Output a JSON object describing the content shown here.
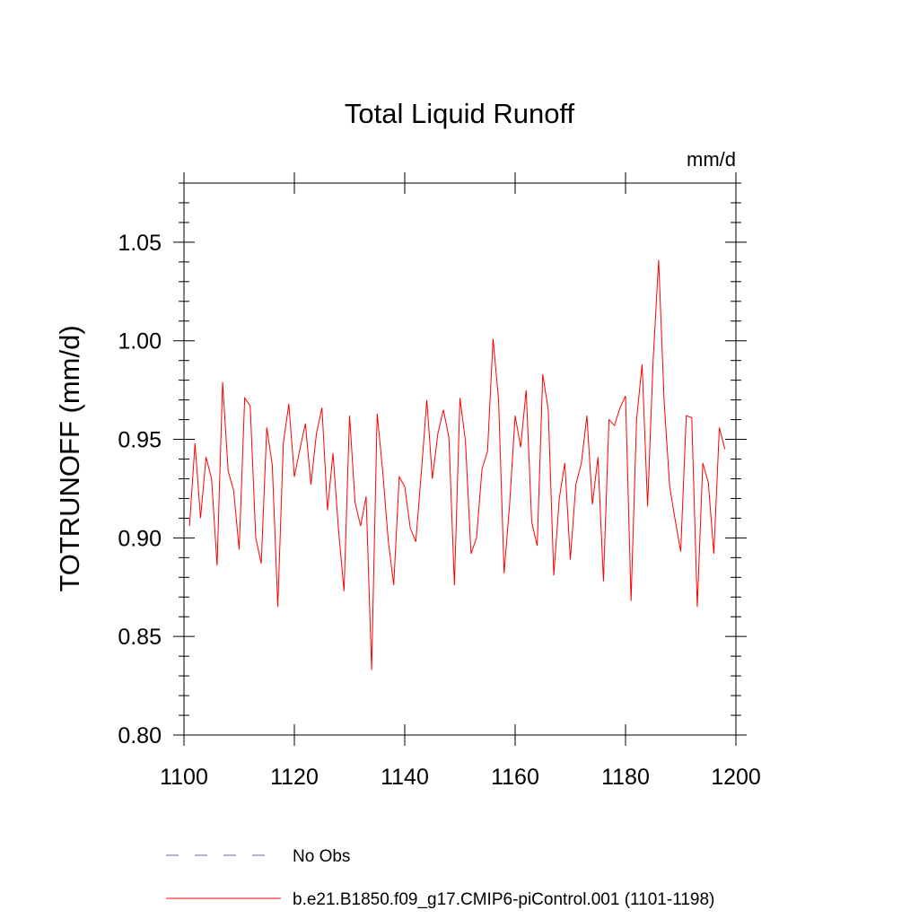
{
  "chart_data": {
    "type": "line",
    "title": "Total Liquid Runoff",
    "units_label": "mm/d",
    "ylabel": "TOTRUNOFF  (mm/d)",
    "xlabel": "",
    "xlim": [
      1100,
      1200
    ],
    "ylim": [
      0.8,
      1.08
    ],
    "xticks": [
      1100,
      1120,
      1140,
      1160,
      1180,
      1200
    ],
    "xtick_labels": [
      "1100",
      "1120",
      "1140",
      "1160",
      "1180",
      "1200"
    ],
    "yticks": [
      0.8,
      0.85,
      0.9,
      0.95,
      1.0,
      1.05
    ],
    "ytick_labels": [
      "0.80",
      "0.85",
      "0.90",
      "0.95",
      "1.00",
      "1.05"
    ],
    "grid": false,
    "legend_position": "bottom",
    "legend": [
      {
        "label": "No Obs",
        "color": "#6a5acd",
        "style": "dashed"
      },
      {
        "label": "b.e21.B1850.f09_g17.CMIP6-piControl.001 (1101-1198)",
        "color": "#ff0000",
        "style": "solid"
      }
    ],
    "series": [
      {
        "name": "b.e21.B1850.f09_g17.CMIP6-piControl.001 (1101-1198)",
        "color": "#ff0000",
        "x": [
          1101,
          1102,
          1103,
          1104,
          1105,
          1106,
          1107,
          1108,
          1109,
          1110,
          1111,
          1112,
          1113,
          1114,
          1115,
          1116,
          1117,
          1118,
          1119,
          1120,
          1121,
          1122,
          1123,
          1124,
          1125,
          1126,
          1127,
          1128,
          1129,
          1130,
          1131,
          1132,
          1133,
          1134,
          1135,
          1136,
          1137,
          1138,
          1139,
          1140,
          1141,
          1142,
          1143,
          1144,
          1145,
          1146,
          1147,
          1148,
          1149,
          1150,
          1151,
          1152,
          1153,
          1154,
          1155,
          1156,
          1157,
          1158,
          1159,
          1160,
          1161,
          1162,
          1163,
          1164,
          1165,
          1166,
          1167,
          1168,
          1169,
          1170,
          1171,
          1172,
          1173,
          1174,
          1175,
          1176,
          1177,
          1178,
          1179,
          1180,
          1181,
          1182,
          1183,
          1184,
          1185,
          1186,
          1187,
          1188,
          1189,
          1190,
          1191,
          1192,
          1193,
          1194,
          1195,
          1196,
          1197,
          1198
        ],
        "values": [
          0.906,
          0.948,
          0.91,
          0.941,
          0.93,
          0.886,
          0.979,
          0.934,
          0.924,
          0.894,
          0.971,
          0.967,
          0.9,
          0.887,
          0.956,
          0.937,
          0.865,
          0.948,
          0.968,
          0.931,
          0.945,
          0.958,
          0.927,
          0.953,
          0.966,
          0.914,
          0.943,
          0.904,
          0.873,
          0.962,
          0.918,
          0.906,
          0.921,
          0.833,
          0.963,
          0.934,
          0.899,
          0.876,
          0.931,
          0.926,
          0.905,
          0.898,
          0.933,
          0.97,
          0.93,
          0.953,
          0.965,
          0.951,
          0.876,
          0.971,
          0.949,
          0.892,
          0.9,
          0.935,
          0.944,
          1.001,
          0.97,
          0.882,
          0.917,
          0.962,
          0.946,
          0.975,
          0.908,
          0.896,
          0.983,
          0.965,
          0.881,
          0.92,
          0.938,
          0.889,
          0.927,
          0.938,
          0.962,
          0.917,
          0.941,
          0.878,
          0.96,
          0.957,
          0.966,
          0.972,
          0.868,
          0.96,
          0.988,
          0.916,
          0.99,
          1.041,
          0.969,
          0.926,
          0.909,
          0.893,
          0.962,
          0.961,
          0.865,
          0.938,
          0.928,
          0.892,
          0.956,
          0.945
        ]
      }
    ]
  }
}
